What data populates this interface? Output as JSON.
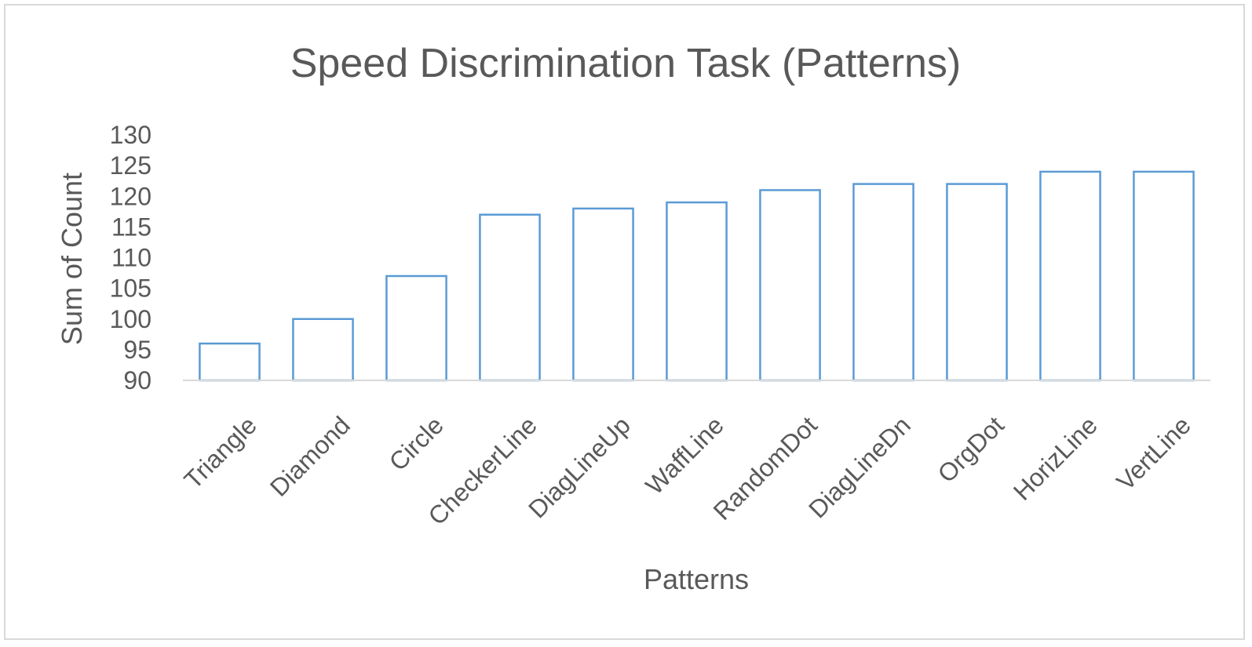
{
  "chart_data": {
    "type": "bar",
    "title": "Speed Discrimination Task (Patterns)",
    "xlabel": "Patterns",
    "ylabel": "Sum of Count",
    "categories": [
      "Triangle",
      "Diamond",
      "Circle",
      "CheckerLine",
      "DiagLineUp",
      "WaffLine",
      "RandomDot",
      "DiagLineDn",
      "OrgDot",
      "HorizLine",
      "VertLine"
    ],
    "values": [
      96,
      100,
      107,
      117,
      118,
      119,
      121,
      122,
      122,
      124,
      124
    ],
    "ylim": [
      90,
      130
    ],
    "yticks": [
      90,
      95,
      100,
      105,
      110,
      115,
      120,
      125,
      130
    ],
    "grid": false,
    "legend": "none",
    "bar_fill": "#ffffff",
    "bar_stroke": "#5b9bd5",
    "text_color": "#595959",
    "axis_color": "#d9d9d9"
  }
}
